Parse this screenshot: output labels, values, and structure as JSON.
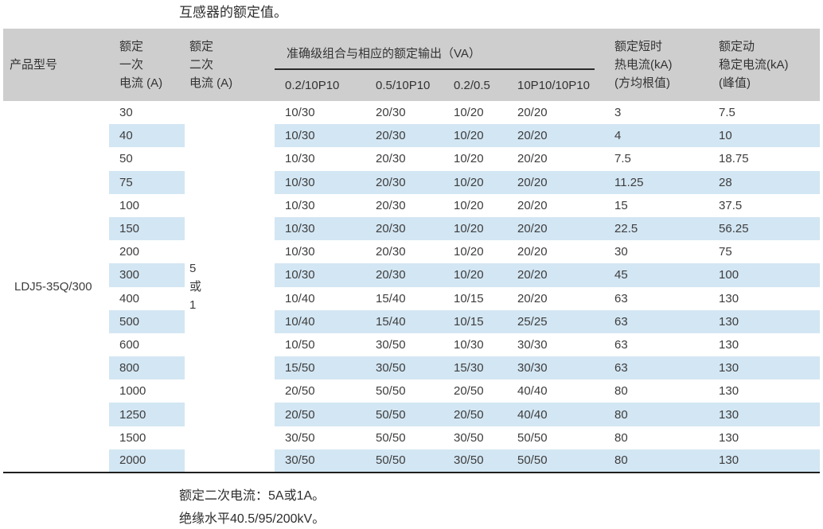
{
  "title": "互感器的额定值。",
  "colors": {
    "header_bg": "#cecece",
    "stripe_bg": "#d3e6f3",
    "text": "#3d3d3d",
    "table_border": "#1f1f1f"
  },
  "table": {
    "headers": {
      "product_model": "产品型号",
      "primary_current": [
        "额定",
        "一次",
        "电流 (A)"
      ],
      "secondary_current": [
        "额定",
        "二次",
        "电流 (A)"
      ],
      "accuracy_group": "准确级组合与相应的额定输出（VA）",
      "accuracy_columns": [
        "0.2/10P10",
        "0.5/10P10",
        "0.2/0.5",
        "10P10/10P10"
      ],
      "thermal_current": [
        "额定短时",
        "热电流(kA)",
        "(方均根值)"
      ],
      "dynamic_current": [
        "额定动",
        "稳定电流(kA)",
        "(峰值)"
      ]
    },
    "product_model_value": "LDJ5-35Q/300",
    "secondary_current_value": [
      "5",
      "或",
      "1"
    ],
    "rows": [
      {
        "primary": "30",
        "outputs": [
          "10/30",
          "20/30",
          "10/20",
          "20/20"
        ],
        "thermal": "3",
        "dynamic": "7.5"
      },
      {
        "primary": "40",
        "outputs": [
          "10/30",
          "20/30",
          "10/20",
          "20/20"
        ],
        "thermal": "4",
        "dynamic": "10"
      },
      {
        "primary": "50",
        "outputs": [
          "10/30",
          "20/30",
          "10/20",
          "20/20"
        ],
        "thermal": "7.5",
        "dynamic": "18.75"
      },
      {
        "primary": "75",
        "outputs": [
          "10/30",
          "20/30",
          "10/20",
          "20/20"
        ],
        "thermal": "11.25",
        "dynamic": "28"
      },
      {
        "primary": "100",
        "outputs": [
          "10/30",
          "20/30",
          "10/20",
          "20/20"
        ],
        "thermal": "15",
        "dynamic": "37.5"
      },
      {
        "primary": "150",
        "outputs": [
          "10/30",
          "20/30",
          "10/20",
          "20/20"
        ],
        "thermal": "22.5",
        "dynamic": "56.25"
      },
      {
        "primary": "200",
        "outputs": [
          "10/30",
          "20/30",
          "10/20",
          "20/20"
        ],
        "thermal": "30",
        "dynamic": "75"
      },
      {
        "primary": "300",
        "outputs": [
          "10/30",
          "20/30",
          "10/20",
          "20/20"
        ],
        "thermal": "45",
        "dynamic": "100"
      },
      {
        "primary": "400",
        "outputs": [
          "10/40",
          "15/40",
          "10/15",
          "20/20"
        ],
        "thermal": "63",
        "dynamic": "130"
      },
      {
        "primary": "500",
        "outputs": [
          "10/40",
          "15/40",
          "10/15",
          "25/25"
        ],
        "thermal": "63",
        "dynamic": "130"
      },
      {
        "primary": "600",
        "outputs": [
          "10/50",
          "30/50",
          "10/30",
          "30/30"
        ],
        "thermal": "63",
        "dynamic": "130"
      },
      {
        "primary": "800",
        "outputs": [
          "15/50",
          "30/50",
          "15/30",
          "30/30"
        ],
        "thermal": "63",
        "dynamic": "130"
      },
      {
        "primary": "1000",
        "outputs": [
          "20/50",
          "50/50",
          "20/50",
          "40/40"
        ],
        "thermal": "80",
        "dynamic": "130"
      },
      {
        "primary": "1250",
        "outputs": [
          "20/50",
          "50/50",
          "20/50",
          "40/40"
        ],
        "thermal": "80",
        "dynamic": "130"
      },
      {
        "primary": "1500",
        "outputs": [
          "30/50",
          "50/50",
          "30/50",
          "50/50"
        ],
        "thermal": "80",
        "dynamic": "130"
      },
      {
        "primary": "2000",
        "outputs": [
          "30/50",
          "50/50",
          "30/50",
          "50/50"
        ],
        "thermal": "80",
        "dynamic": "130"
      }
    ]
  },
  "notes": [
    "额定二次电流：5A或1A。",
    "绝缘水平40.5/95/200kV。"
  ]
}
